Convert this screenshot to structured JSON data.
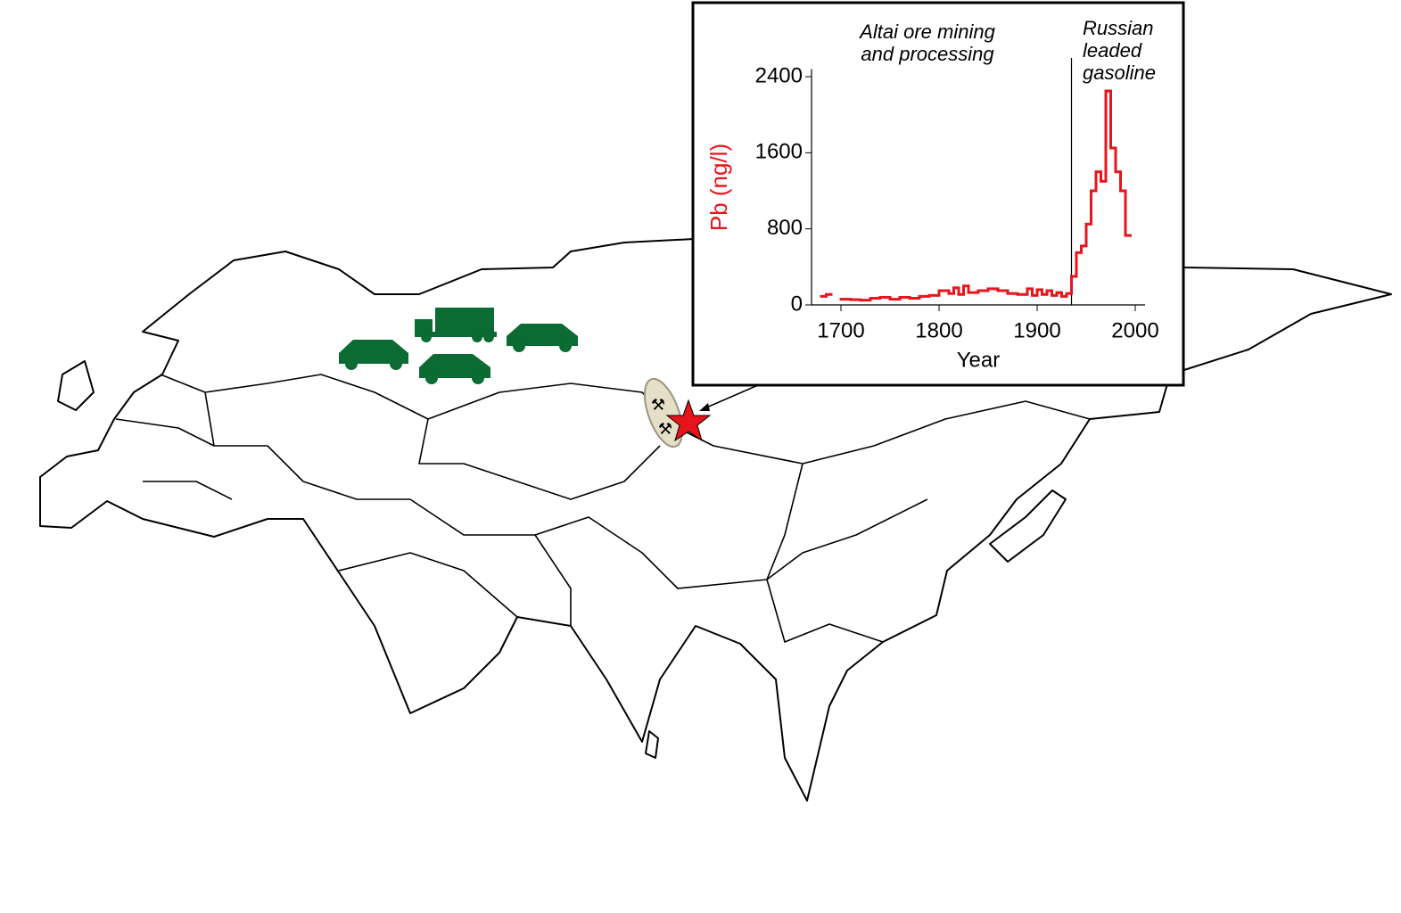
{
  "chart_data": {
    "type": "step",
    "x_label": "Year",
    "y_label": "Pb (ng/l)",
    "annotations": [
      {
        "lines": [
          "Altai ore mining",
          "and processing"
        ]
      },
      {
        "lines": [
          "Russian",
          "leaded",
          "gasoline"
        ],
        "x": 1935
      }
    ],
    "x": [
      1680,
      1685,
      1690,
      1700,
      1710,
      1720,
      1730,
      1740,
      1750,
      1760,
      1770,
      1780,
      1790,
      1800,
      1810,
      1815,
      1820,
      1825,
      1830,
      1840,
      1850,
      1860,
      1870,
      1880,
      1890,
      1895,
      1900,
      1905,
      1910,
      1915,
      1920,
      1925,
      1930,
      1935,
      1940,
      1945,
      1950,
      1955,
      1960,
      1965,
      1970,
      1975,
      1980,
      1985,
      1990
    ],
    "series": [
      {
        "name": "Pb",
        "color": "#e8141c",
        "values": [
          90,
          110,
          null,
          60,
          55,
          50,
          70,
          80,
          60,
          80,
          70,
          90,
          100,
          150,
          120,
          180,
          110,
          200,
          130,
          150,
          170,
          150,
          120,
          110,
          170,
          100,
          160,
          110,
          150,
          100,
          130,
          90,
          120,
          300,
          550,
          620,
          850,
          1200,
          1400,
          1300,
          2250,
          1650,
          1400,
          1200,
          730
        ]
      }
    ],
    "xlim": [
      1670,
      2010
    ],
    "ylim": [
      0,
      2480
    ],
    "xticks": [
      1700,
      1800,
      1900,
      2000
    ],
    "yticks": [
      0,
      800,
      1600,
      2400
    ]
  }
}
